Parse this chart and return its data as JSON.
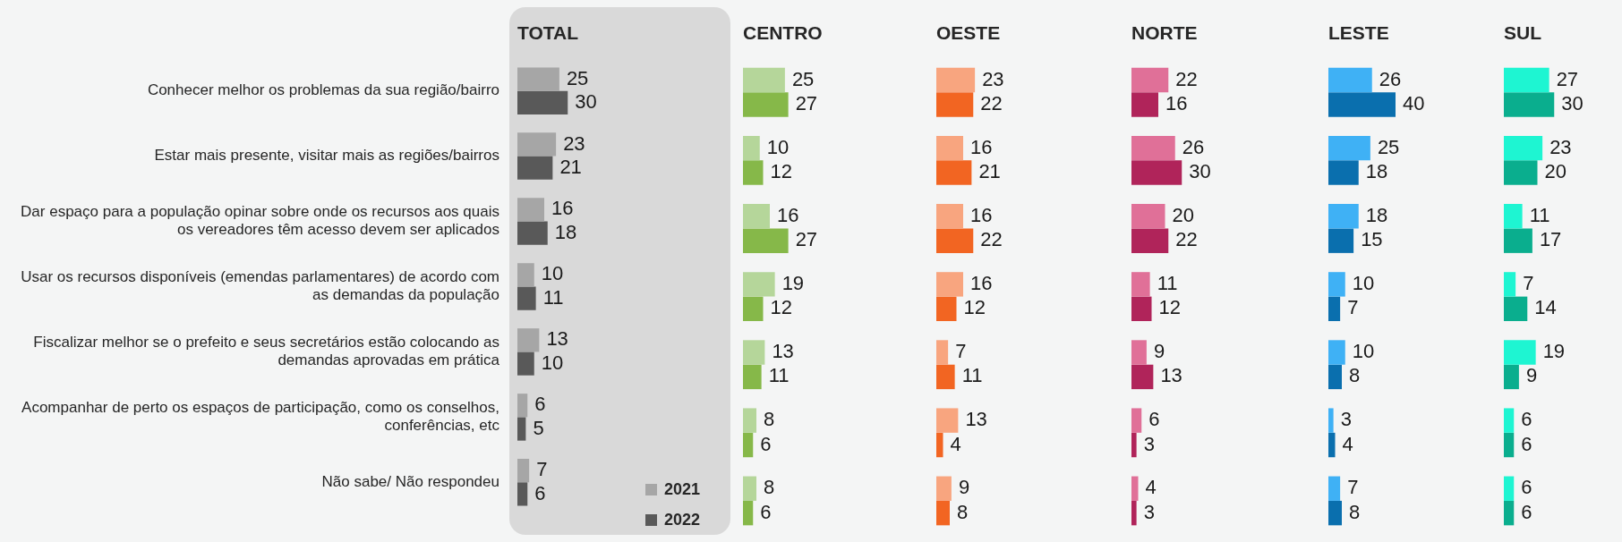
{
  "chart_data": [
    {
      "type": "bar",
      "orientation": "horizontal",
      "title": "TOTAL",
      "categories": [
        "Conhecer melhor os problemas da sua região/bairro",
        "Estar mais presente, visitar mais as regiões/bairros",
        "Dar espaço para a população opinar sobre onde os recursos aos quais os vereadores têm acesso devem ser aplicados",
        "Usar os recursos disponíveis (emendas parlamentares) de acordo com as demandas da população",
        "Fiscalizar melhor se o prefeito e seus secretários estão colocando as demandas aprovadas em prática",
        "Acompanhar de perto os espaços de participação, como os conselhos, conferências, etc",
        "Não sabe/ Não respondeu"
      ],
      "tick_labels": "y",
      "data_labels": true,
      "legend": "bottom right",
      "series": [
        {
          "name": "2021",
          "color": "#a6a6a6",
          "values": [
            25,
            23,
            16,
            10,
            13,
            6,
            7
          ]
        },
        {
          "name": "2022",
          "color": "#595959",
          "values": [
            30,
            21,
            18,
            11,
            10,
            5,
            6
          ]
        }
      ]
    },
    {
      "type": "bar",
      "orientation": "horizontal",
      "title": "CENTRO",
      "categories": [
        null,
        null,
        null,
        null,
        null,
        null,
        null
      ],
      "tick_labels": false,
      "data_labels": true,
      "series": [
        {
          "color": "#b5d69a",
          "values": [
            25,
            10,
            16,
            19,
            13,
            8,
            8
          ]
        },
        {
          "color": "#86b849",
          "values": [
            27,
            12,
            27,
            12,
            11,
            6,
            6
          ]
        }
      ]
    },
    {
      "type": "bar",
      "orientation": "horizontal",
      "title": "OESTE",
      "categories": [
        null,
        null,
        null,
        null,
        null,
        null,
        null
      ],
      "tick_labels": false,
      "data_labels": true,
      "series": [
        {
          "color": "#f8a57f",
          "values": [
            23,
            16,
            16,
            16,
            7,
            13,
            9
          ]
        },
        {
          "color": "#f26522",
          "values": [
            22,
            21,
            22,
            12,
            11,
            4,
            8
          ]
        }
      ]
    },
    {
      "type": "bar",
      "orientation": "horizontal",
      "title": "NORTE",
      "categories": [
        null,
        null,
        null,
        null,
        null,
        null,
        null
      ],
      "tick_labels": false,
      "data_labels": true,
      "series": [
        {
          "color": "#e07098",
          "values": [
            22,
            26,
            20,
            11,
            9,
            6,
            4
          ]
        },
        {
          "color": "#b0245a",
          "values": [
            16,
            30,
            22,
            12,
            13,
            3,
            3
          ]
        }
      ]
    },
    {
      "type": "bar",
      "orientation": "horizontal",
      "title": "LESTE",
      "categories": [
        null,
        null,
        null,
        null,
        null,
        null,
        null
      ],
      "tick_labels": false,
      "data_labels": true,
      "series": [
        {
          "color": "#3fb1f5",
          "values": [
            26,
            25,
            18,
            10,
            10,
            3,
            7
          ]
        },
        {
          "color": "#0a6fae",
          "values": [
            40,
            18,
            15,
            7,
            8,
            4,
            8
          ]
        }
      ]
    },
    {
      "type": "bar",
      "orientation": "horizontal",
      "title": "SUL",
      "categories": [
        null,
        null,
        null,
        null,
        null,
        null,
        null
      ],
      "tick_labels": false,
      "data_labels": true,
      "series": [
        {
          "color": "#1ef5d2",
          "values": [
            27,
            23,
            11,
            7,
            19,
            6,
            6
          ]
        },
        {
          "color": "#0aae8e",
          "values": [
            30,
            20,
            17,
            14,
            9,
            6,
            6
          ]
        }
      ]
    }
  ]
}
